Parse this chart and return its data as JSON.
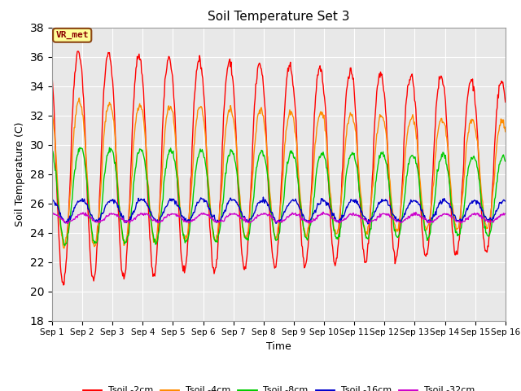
{
  "title": "Soil Temperature Set 3",
  "xlabel": "Time",
  "ylabel": "Soil Temperature (C)",
  "xlim": [
    0,
    15
  ],
  "ylim": [
    18,
    38
  ],
  "yticks": [
    18,
    20,
    22,
    24,
    26,
    28,
    30,
    32,
    34,
    36,
    38
  ],
  "xtick_labels": [
    "Sep 1",
    "Sep 2",
    "Sep 3",
    "Sep 4",
    "Sep 5",
    "Sep 6",
    "Sep 7",
    "Sep 8",
    "Sep 9",
    "Sep 10",
    "Sep 11",
    "Sep 12",
    "Sep 13",
    "Sep 14",
    "Sep 15",
    "Sep 16"
  ],
  "annotation_text": "VR_met",
  "bg_color": "#e8e8e8",
  "fig_bg_color": "#ffffff",
  "legend_colors": [
    "#ff0000",
    "#ff8c00",
    "#00cc00",
    "#0000cc",
    "#cc00cc"
  ],
  "legend_labels": [
    "Tsoil -2cm",
    "Tsoil -4cm",
    "Tsoil -8cm",
    "Tsoil -16cm",
    "Tsoil -32cm"
  ],
  "n_days": 15,
  "pts_per_day": 48,
  "series_params": {
    "t2cm": {
      "mean": 28.5,
      "amp": 8.0,
      "phase": 0.62,
      "amp_start": 1.0,
      "amp_end": 0.72
    },
    "t4cm": {
      "mean": 28.0,
      "amp": 5.0,
      "phase": 0.65,
      "amp_start": 1.0,
      "amp_end": 0.72
    },
    "t8cm": {
      "mean": 26.5,
      "amp": 3.3,
      "phase": 0.68,
      "amp_start": 1.0,
      "amp_end": 0.82
    },
    "t16cm": {
      "mean": 25.5,
      "amp": 0.75,
      "phase": 0.72,
      "amp_start": 1.0,
      "amp_end": 0.9
    },
    "t32cm": {
      "mean": 25.0,
      "amp": 0.28,
      "phase": 0.76,
      "amp_start": 1.0,
      "amp_end": 0.95
    }
  }
}
